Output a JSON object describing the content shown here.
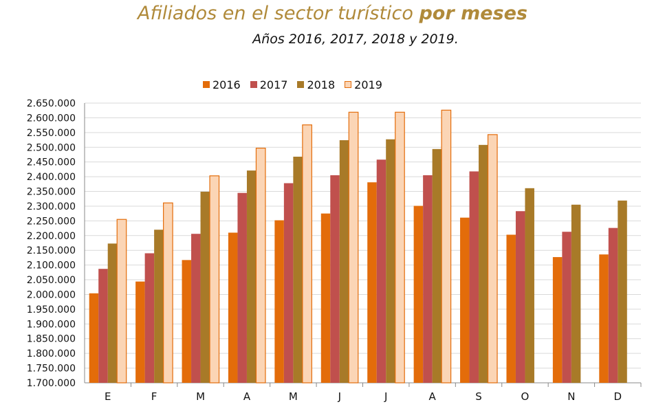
{
  "title_main": "Afiliados en el sector turístico ",
  "title_bold": "por meses",
  "subtitle": "Años 2016, 2017, 2018 y 2019.",
  "colors": {
    "title": "#B08A3A",
    "s2016": "#E36C0A",
    "s2017": "#C0504D",
    "s2018": "#A87A28",
    "s2019_fill": "#FBD5B5",
    "s2019_border": "#E36C0A",
    "grid": "#D9D9D9"
  },
  "chart_data": {
    "type": "bar",
    "categories": [
      "E",
      "F",
      "M",
      "A",
      "M",
      "J",
      "J",
      "A",
      "S",
      "O",
      "N",
      "D"
    ],
    "series": [
      {
        "name": "2016",
        "values": [
          2004000,
          2044000,
          2117000,
          2210000,
          2252000,
          2275000,
          2381000,
          2301000,
          2261000,
          2203000,
          2127000,
          2136000
        ]
      },
      {
        "name": "2017",
        "values": [
          2087000,
          2140000,
          2206000,
          2345000,
          2378000,
          2405000,
          2458000,
          2405000,
          2418000,
          2283000,
          2213000,
          2226000
        ]
      },
      {
        "name": "2018",
        "values": [
          2173000,
          2220000,
          2349000,
          2421000,
          2468000,
          2524000,
          2527000,
          2494000,
          2508000,
          2361000,
          2305000,
          2319000
        ]
      },
      {
        "name": "2019",
        "values": [
          2255000,
          2311000,
          2403000,
          2497000,
          2576000,
          2619000,
          2619000,
          2626000,
          2543000,
          null,
          null,
          null
        ]
      }
    ],
    "y_ticks": [
      "1.700.000",
      "1.750.000",
      "1.800.000",
      "1.850.000",
      "1.900.000",
      "1.950.000",
      "2.000.000",
      "2.050.000",
      "2.100.000",
      "2.150.000",
      "2.200.000",
      "2.250.000",
      "2.300.000",
      "2.350.000",
      "2.400.000",
      "2.450.000",
      "2.500.000",
      "2.550.000",
      "2.600.000",
      "2.650.000"
    ],
    "ylim": [
      1700000,
      2650000
    ],
    "grid": true,
    "legend_position": "top"
  }
}
